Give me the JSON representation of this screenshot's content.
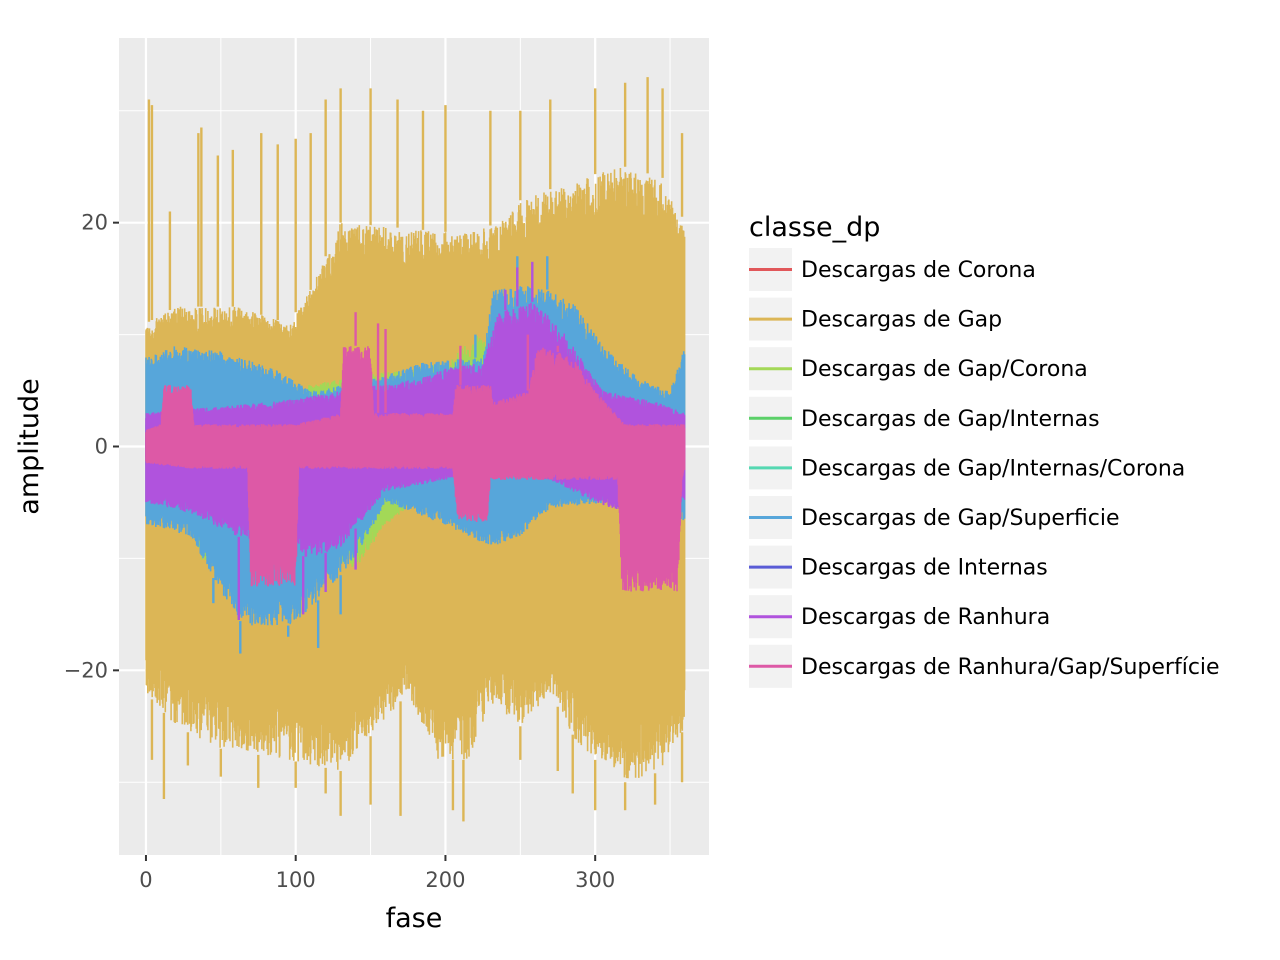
{
  "chart_data": {
    "type": "line",
    "xlabel": "fase",
    "ylabel": "amplitude",
    "xlim": [
      -18,
      376
    ],
    "ylim": [
      -36.5,
      36.5
    ],
    "x_ticks": [
      0,
      100,
      200,
      300
    ],
    "x_tick_labels": [
      "0",
      "100",
      "200",
      "300"
    ],
    "x_minor_ticks": [
      50,
      150,
      250,
      350
    ],
    "y_ticks": [
      -20,
      0,
      20
    ],
    "y_tick_labels": [
      "−20",
      "0",
      "20"
    ],
    "y_minor_ticks": [
      -30,
      -10,
      10,
      30
    ],
    "grid": true,
    "panel_background": "#ebebeb",
    "legend": {
      "title": "classe_dp",
      "position": "right"
    },
    "series": [
      {
        "name": "Descargas de Corona",
        "color": "#e1575a",
        "x_range": [
          0,
          360
        ],
        "upper_knots": [
          [
            0,
            1.5
          ],
          [
            360,
            1.5
          ]
        ],
        "lower_knots": [
          [
            0,
            -1.5
          ],
          [
            360,
            -1.5
          ]
        ],
        "spikes": []
      },
      {
        "name": "Descargas de Gap",
        "color": "#dcb656",
        "x_range": [
          0,
          360
        ],
        "upper_knots": [
          [
            0,
            11
          ],
          [
            20,
            12.5
          ],
          [
            60,
            12.5
          ],
          [
            95,
            11
          ],
          [
            110,
            14
          ],
          [
            130,
            20
          ],
          [
            215,
            19
          ],
          [
            235,
            20
          ],
          [
            250,
            22
          ],
          [
            290,
            24
          ],
          [
            320,
            25
          ],
          [
            345,
            24
          ],
          [
            360,
            20
          ]
        ],
        "lower_knots": [
          [
            0,
            -22
          ],
          [
            20,
            -25
          ],
          [
            50,
            -27
          ],
          [
            95,
            -28
          ],
          [
            130,
            -29
          ],
          [
            175,
            -22
          ],
          [
            195,
            -28
          ],
          [
            215,
            -28
          ],
          [
            230,
            -23
          ],
          [
            250,
            -25
          ],
          [
            270,
            -22
          ],
          [
            290,
            -27
          ],
          [
            320,
            -30
          ],
          [
            345,
            -29
          ],
          [
            360,
            -25
          ]
        ],
        "spikes": [
          [
            2,
            31
          ],
          [
            4,
            30.5
          ],
          [
            16,
            21
          ],
          [
            35,
            28
          ],
          [
            37,
            28.5
          ],
          [
            48,
            26
          ],
          [
            58,
            26.5
          ],
          [
            77,
            28
          ],
          [
            88,
            27
          ],
          [
            100,
            27.5
          ],
          [
            110,
            28
          ],
          [
            120,
            31
          ],
          [
            130,
            32
          ],
          [
            150,
            32
          ],
          [
            168,
            31
          ],
          [
            185,
            30
          ],
          [
            200,
            30.5
          ],
          [
            230,
            30
          ],
          [
            250,
            30
          ],
          [
            270,
            31
          ],
          [
            300,
            32
          ],
          [
            320,
            32.5
          ],
          [
            335,
            33
          ],
          [
            345,
            32
          ],
          [
            358,
            28
          ],
          [
            4,
            -28
          ],
          [
            12,
            -31.5
          ],
          [
            28,
            -28.5
          ],
          [
            50,
            -29.5
          ],
          [
            75,
            -30.5
          ],
          [
            100,
            -30.5
          ],
          [
            120,
            -31
          ],
          [
            130,
            -33
          ],
          [
            150,
            -32
          ],
          [
            170,
            -33
          ],
          [
            205,
            -32.5
          ],
          [
            212,
            -33.5
          ],
          [
            250,
            -28
          ],
          [
            275,
            -29
          ],
          [
            285,
            -31
          ],
          [
            300,
            -32.5
          ],
          [
            320,
            -32.5
          ],
          [
            340,
            -32
          ],
          [
            358,
            -30
          ]
        ]
      },
      {
        "name": "Descargas de Gap/Corona",
        "color": "#a3d857",
        "x_range": [
          30,
          240
        ],
        "upper_knots": [
          [
            30,
            4
          ],
          [
            100,
            4.5
          ],
          [
            108,
            5.5
          ],
          [
            130,
            6
          ],
          [
            200,
            7.5
          ],
          [
            222,
            10
          ],
          [
            235,
            8
          ],
          [
            240,
            6
          ]
        ],
        "lower_knots": [
          [
            30,
            -7
          ],
          [
            38,
            -10.5
          ],
          [
            60,
            -9
          ],
          [
            100,
            -8
          ],
          [
            140,
            -11
          ],
          [
            160,
            -7
          ],
          [
            180,
            -5
          ],
          [
            240,
            -5
          ]
        ],
        "spikes": []
      },
      {
        "name": "Descargas de Gap/Internas",
        "color": "#5bd068",
        "x_range": [
          90,
          230
        ],
        "upper_knots": [
          [
            90,
            3
          ],
          [
            120,
            4
          ],
          [
            160,
            3.5
          ],
          [
            200,
            4
          ],
          [
            230,
            4.5
          ]
        ],
        "lower_knots": [
          [
            90,
            -3
          ],
          [
            120,
            -3.5
          ],
          [
            160,
            -3
          ],
          [
            200,
            -3.5
          ],
          [
            230,
            -3
          ]
        ],
        "spikes": []
      },
      {
        "name": "Descargas de Gap/Internas/Corona",
        "color": "#55d8b2",
        "x_range": [
          0,
          360
        ],
        "upper_knots": [
          [
            0,
            2
          ],
          [
            360,
            2
          ]
        ],
        "lower_knots": [
          [
            0,
            -2
          ],
          [
            360,
            -2
          ]
        ],
        "spikes": []
      },
      {
        "name": "Descargas de Gap/Superficie",
        "color": "#57a6da",
        "x_range": [
          0,
          360
        ],
        "upper_knots": [
          [
            0,
            8
          ],
          [
            20,
            9
          ],
          [
            50,
            8.5
          ],
          [
            85,
            7
          ],
          [
            110,
            5
          ],
          [
            150,
            6
          ],
          [
            185,
            7.5
          ],
          [
            225,
            8
          ],
          [
            232,
            14
          ],
          [
            260,
            14.5
          ],
          [
            285,
            13
          ],
          [
            305,
            9
          ],
          [
            330,
            6
          ],
          [
            350,
            5
          ],
          [
            360,
            9
          ]
        ],
        "lower_knots": [
          [
            0,
            -7
          ],
          [
            30,
            -8
          ],
          [
            50,
            -13
          ],
          [
            65,
            -16
          ],
          [
            85,
            -16
          ],
          [
            100,
            -16
          ],
          [
            120,
            -13
          ],
          [
            140,
            -10
          ],
          [
            160,
            -5
          ],
          [
            200,
            -7
          ],
          [
            230,
            -9
          ],
          [
            250,
            -8
          ],
          [
            270,
            -5.5
          ],
          [
            310,
            -5
          ],
          [
            340,
            -6
          ],
          [
            360,
            -7
          ]
        ],
        "spikes": [
          [
            248,
            17
          ],
          [
            268,
            17
          ],
          [
            220,
            10
          ],
          [
            63,
            -18.5
          ],
          [
            95,
            -17
          ],
          [
            115,
            -18
          ],
          [
            130,
            -15
          ],
          [
            45,
            -14
          ]
        ]
      },
      {
        "name": "Descargas de Internas",
        "color": "#5a5cd6",
        "x_range": [
          0,
          360
        ],
        "upper_knots": [
          [
            0,
            1
          ],
          [
            360,
            1
          ]
        ],
        "lower_knots": [
          [
            0,
            -1
          ],
          [
            360,
            -1
          ]
        ],
        "spikes": []
      },
      {
        "name": "Descargas de Ranhura",
        "color": "#b053dd",
        "x_range": [
          0,
          360
        ],
        "upper_knots": [
          [
            0,
            3
          ],
          [
            40,
            3.5
          ],
          [
            85,
            4
          ],
          [
            110,
            4.5
          ],
          [
            130,
            5
          ],
          [
            180,
            6
          ],
          [
            200,
            7
          ],
          [
            225,
            7.5
          ],
          [
            235,
            12
          ],
          [
            260,
            13
          ],
          [
            280,
            10
          ],
          [
            305,
            5
          ],
          [
            340,
            4
          ],
          [
            360,
            3
          ]
        ],
        "lower_knots": [
          [
            0,
            -5
          ],
          [
            30,
            -6
          ],
          [
            60,
            -8
          ],
          [
            85,
            -9
          ],
          [
            110,
            -10
          ],
          [
            130,
            -9
          ],
          [
            160,
            -4
          ],
          [
            200,
            -3
          ],
          [
            220,
            -2
          ],
          [
            240,
            -2.5
          ],
          [
            270,
            -3
          ],
          [
            300,
            -5
          ],
          [
            320,
            -6
          ],
          [
            345,
            -5
          ],
          [
            360,
            -5
          ]
        ],
        "spikes": [
          [
            248,
            16
          ],
          [
            258,
            16.5
          ],
          [
            240,
            14
          ],
          [
            62,
            -15.5
          ],
          [
            105,
            -15
          ],
          [
            120,
            -13
          ],
          [
            140,
            -11
          ]
        ]
      },
      {
        "name": "Descargas de Ranhura/Gap/Superfície",
        "color": "#dd59a6",
        "x_range": [
          0,
          360
        ],
        "upper_knots": [
          [
            0,
            1.5
          ],
          [
            10,
            2
          ],
          [
            12,
            5.5
          ],
          [
            30,
            5.5
          ],
          [
            32,
            2
          ],
          [
            70,
            2
          ],
          [
            100,
            2
          ],
          [
            130,
            3
          ],
          [
            132,
            9
          ],
          [
            150,
            9
          ],
          [
            152,
            3
          ],
          [
            205,
            3
          ],
          [
            207,
            5.5
          ],
          [
            230,
            5.5
          ],
          [
            232,
            4
          ],
          [
            255,
            5
          ],
          [
            262,
            9
          ],
          [
            285,
            8
          ],
          [
            300,
            5
          ],
          [
            320,
            2
          ],
          [
            360,
            2
          ]
        ],
        "lower_knots": [
          [
            0,
            -1.5
          ],
          [
            30,
            -2
          ],
          [
            68,
            -2
          ],
          [
            70,
            -12.5
          ],
          [
            100,
            -12.5
          ],
          [
            102,
            -2
          ],
          [
            205,
            -2
          ],
          [
            208,
            -6.5
          ],
          [
            228,
            -7
          ],
          [
            230,
            -3
          ],
          [
            315,
            -3
          ],
          [
            318,
            -13
          ],
          [
            355,
            -13
          ],
          [
            358,
            -3
          ],
          [
            360,
            -2
          ]
        ],
        "spikes": [
          [
            140,
            12
          ],
          [
            155,
            11
          ],
          [
            160,
            10.5
          ],
          [
            210,
            9
          ],
          [
            255,
            10
          ],
          [
            275,
            9
          ]
        ]
      }
    ]
  }
}
